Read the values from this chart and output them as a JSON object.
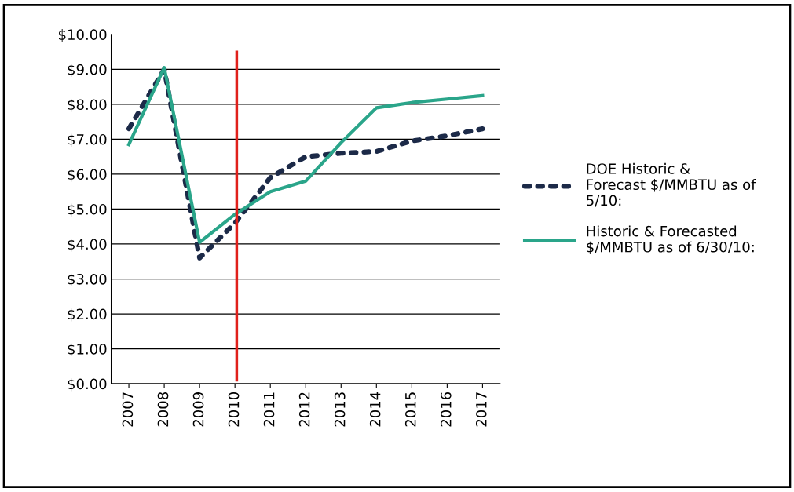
{
  "chart_data": {
    "type": "line",
    "categories": [
      "2007",
      "2008",
      "2009",
      "2010",
      "2011",
      "2012",
      "2013",
      "2014",
      "2015",
      "2016",
      "2017"
    ],
    "series": [
      {
        "name": "DOE Historic & Forecast $/MMBTU as of 5/10:",
        "color": "#1c2a48",
        "line_style": "dotted",
        "values": [
          7.3,
          9.0,
          3.6,
          4.6,
          5.9,
          6.5,
          6.6,
          6.65,
          6.95,
          7.1,
          7.3
        ]
      },
      {
        "name": "Historic & Forecasted $/MMBTU as of 6/30/10:",
        "color": "#2aa58a",
        "line_style": "solid",
        "values": [
          6.85,
          9.05,
          4.05,
          4.85,
          5.5,
          5.8,
          6.9,
          7.9,
          8.05,
          8.15,
          8.25
        ]
      }
    ],
    "ylim": [
      0,
      10
    ],
    "yticks": [
      {
        "value": 0,
        "label": "$0.00"
      },
      {
        "value": 1,
        "label": "$1.00"
      },
      {
        "value": 2,
        "label": "$2.00"
      },
      {
        "value": 3,
        "label": "$3.00"
      },
      {
        "value": 4,
        "label": "$4.00"
      },
      {
        "value": 5,
        "label": "$5.00"
      },
      {
        "value": 6,
        "label": "$6.00"
      },
      {
        "value": 7,
        "label": "$7.00"
      },
      {
        "value": 8,
        "label": "$8.00"
      },
      {
        "value": 9,
        "label": "$9.00"
      },
      {
        "value": 10,
        "label": "$10.00"
      }
    ],
    "grid": "y",
    "legend": "right",
    "ref_lines": [
      {
        "axis": "x",
        "value": "2010",
        "color": "#e0201b"
      }
    ]
  }
}
